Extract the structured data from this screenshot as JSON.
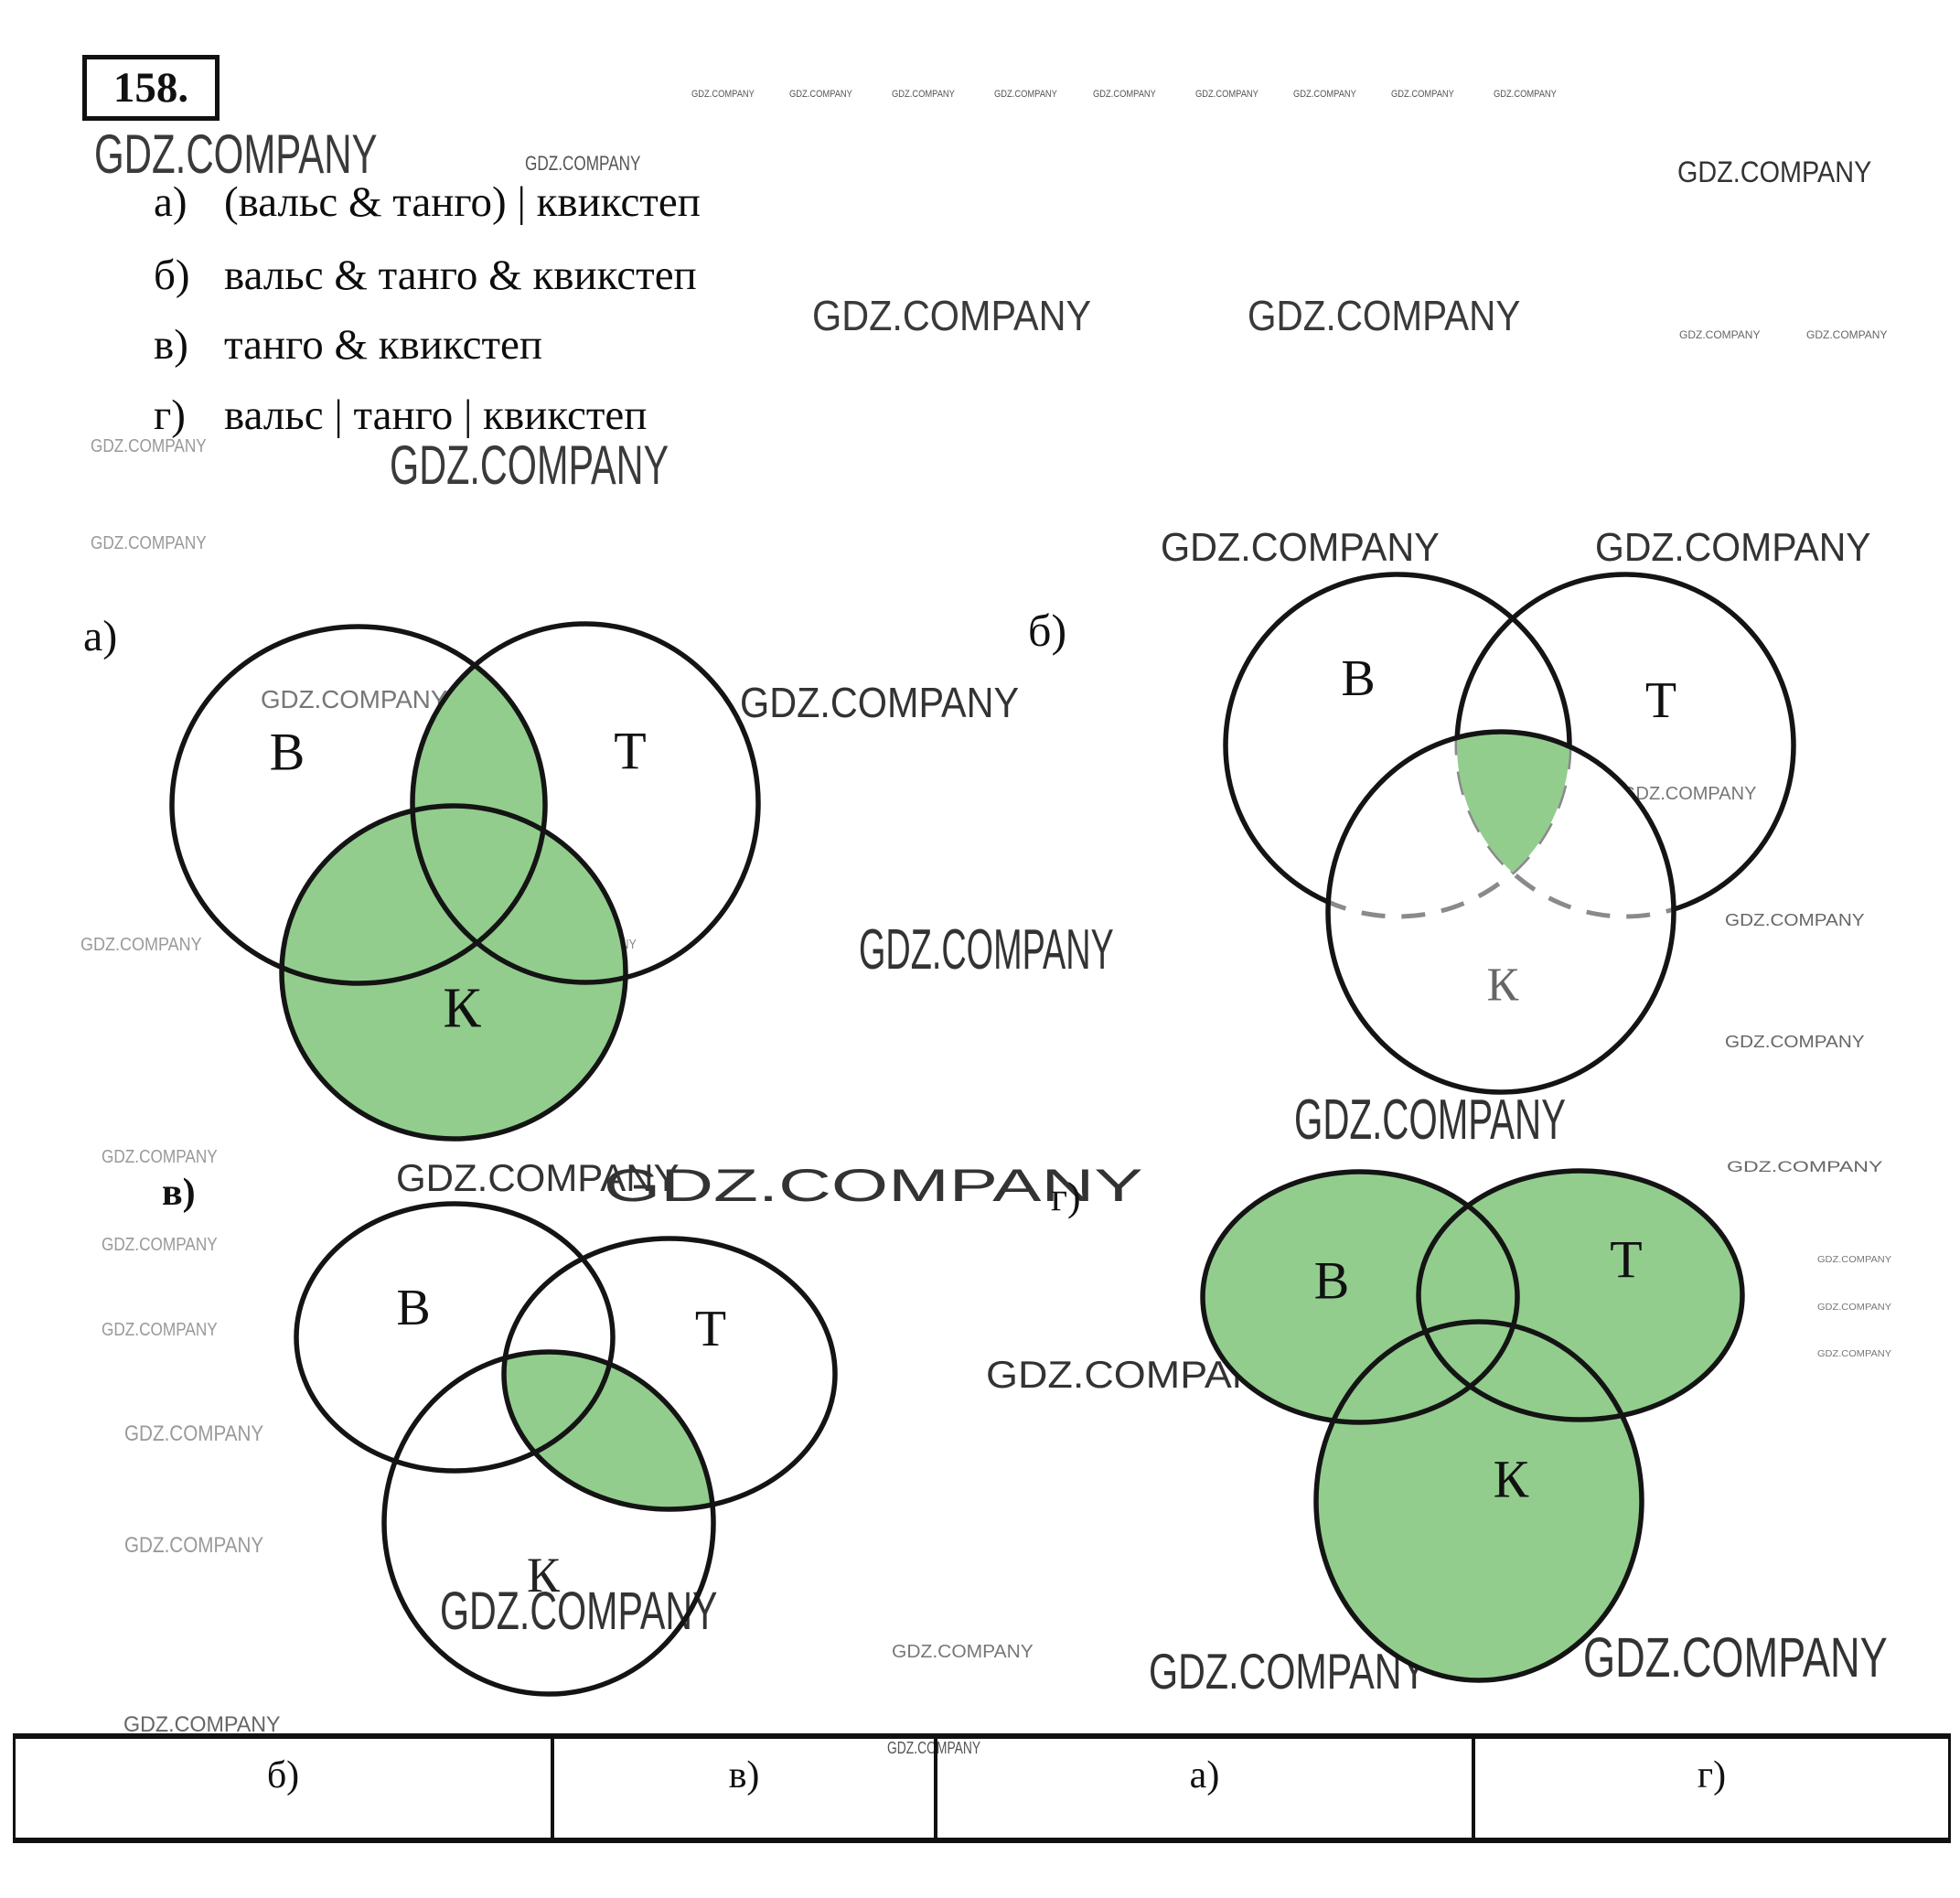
{
  "problem_number": "158.",
  "formulas": [
    {
      "letter": "а)",
      "text": "(вальс & танго) | квикстеп"
    },
    {
      "letter": "б)",
      "text": "вальс & танго & квикстеп"
    },
    {
      "letter": "в)",
      "text": "танго & квикстеп"
    },
    {
      "letter": "г)",
      "text": "вальс | танго | квикстеп"
    }
  ],
  "diagrams": {
    "a": {
      "caption": "а)",
      "labels": {
        "v": "В",
        "t": "Т",
        "k": "К"
      }
    },
    "b": {
      "caption": "б)",
      "labels": {
        "v": "В",
        "t": "Т",
        "k": "К"
      }
    },
    "v": {
      "caption": "в)",
      "labels": {
        "v": "В",
        "t": "Т",
        "k": "К"
      }
    },
    "g": {
      "caption": "г)",
      "labels": {
        "v": "В",
        "t": "Т",
        "k": "К"
      }
    }
  },
  "answer_table": {
    "cells": [
      "б)",
      "в)",
      "а)",
      "г)"
    ]
  },
  "colors": {
    "green": "#92cd8e",
    "stroke": "#141414"
  },
  "watermark": {
    "text": "GDZ.COMPANY",
    "instances": [
      [
        756,
        98,
        11,
        0.85,
        "#555"
      ],
      [
        863,
        98,
        11,
        0.85,
        "#555"
      ],
      [
        975,
        98,
        11,
        0.85,
        "#555"
      ],
      [
        1087,
        98,
        11,
        0.85,
        "#555"
      ],
      [
        1195,
        98,
        11,
        0.85,
        "#555"
      ],
      [
        1307,
        98,
        11,
        0.85,
        "#555"
      ],
      [
        1414,
        98,
        11,
        0.85,
        "#555"
      ],
      [
        1521,
        98,
        11,
        0.85,
        "#555"
      ],
      [
        1633,
        98,
        11,
        0.85,
        "#555"
      ],
      [
        103,
        139,
        60,
        0.7,
        "#3a3a3a"
      ],
      [
        574,
        168,
        22,
        0.78,
        "#555"
      ],
      [
        1834,
        172,
        32,
        0.9,
        "#333"
      ],
      [
        888,
        322,
        46,
        0.9,
        "#3a3a3a"
      ],
      [
        1364,
        322,
        46,
        0.88,
        "#3a3a3a"
      ],
      [
        426,
        479,
        60,
        0.69,
        "#3a3a3a"
      ],
      [
        99,
        478,
        20,
        0.86,
        "#999"
      ],
      [
        99,
        584,
        20,
        0.86,
        "#999"
      ],
      [
        1836,
        360,
        12,
        1.0,
        "#666"
      ],
      [
        1975,
        360,
        12,
        1.0,
        "#666"
      ],
      [
        285,
        751,
        28,
        0.99,
        "#777"
      ],
      [
        809,
        745,
        46,
        0.9,
        "#333"
      ],
      [
        360,
        995,
        28,
        0.74,
        "#555"
      ],
      [
        88,
        1023,
        20,
        0.9,
        "#999"
      ],
      [
        604,
        1025,
        15,
        0.83,
        "#888"
      ],
      [
        939,
        1008,
        62,
        0.61,
        "#333"
      ],
      [
        1269,
        577,
        44,
        0.94,
        "#333"
      ],
      [
        1744,
        577,
        44,
        0.93,
        "#333"
      ],
      [
        1773,
        858,
        20,
        1.0,
        "#777"
      ],
      [
        1464,
        954,
        17,
        1.2,
        "#999"
      ],
      [
        1886,
        997,
        18,
        1.15,
        "#666"
      ],
      [
        1886,
        1130,
        18,
        1.15,
        "#666"
      ],
      [
        1415,
        1194,
        62,
        0.65,
        "#333"
      ],
      [
        433,
        1267,
        42,
        1.0,
        "#333"
      ],
      [
        111,
        1255,
        20,
        0.86,
        "#999"
      ],
      [
        111,
        1351,
        20,
        0.86,
        "#999"
      ],
      [
        111,
        1444,
        20,
        0.86,
        "#999"
      ],
      [
        136,
        1556,
        24,
        0.86,
        "#999"
      ],
      [
        136,
        1678,
        24,
        0.86,
        "#999"
      ],
      [
        481,
        1733,
        58,
        0.71,
        "#333"
      ],
      [
        975,
        1796,
        20,
        1.05,
        "#777"
      ],
      [
        660,
        1271,
        50,
        1.6,
        "#333"
      ],
      [
        1661,
        1417,
        33,
        0.95,
        "#333"
      ],
      [
        1078,
        1482,
        42,
        1.07,
        "#333"
      ],
      [
        1888,
        1267,
        17,
        1.36,
        "#666"
      ],
      [
        1987,
        1373,
        10,
        1.1,
        "#777"
      ],
      [
        1987,
        1425,
        10,
        1.1,
        "#777"
      ],
      [
        1987,
        1476,
        10,
        1.1,
        "#777"
      ],
      [
        1256,
        1800,
        55,
        0.75,
        "#333"
      ],
      [
        1731,
        1782,
        61,
        0.74,
        "#333"
      ],
      [
        135,
        1874,
        24,
        0.97,
        "#666"
      ],
      [
        970,
        1902,
        18,
        0.77,
        "#555"
      ]
    ]
  }
}
